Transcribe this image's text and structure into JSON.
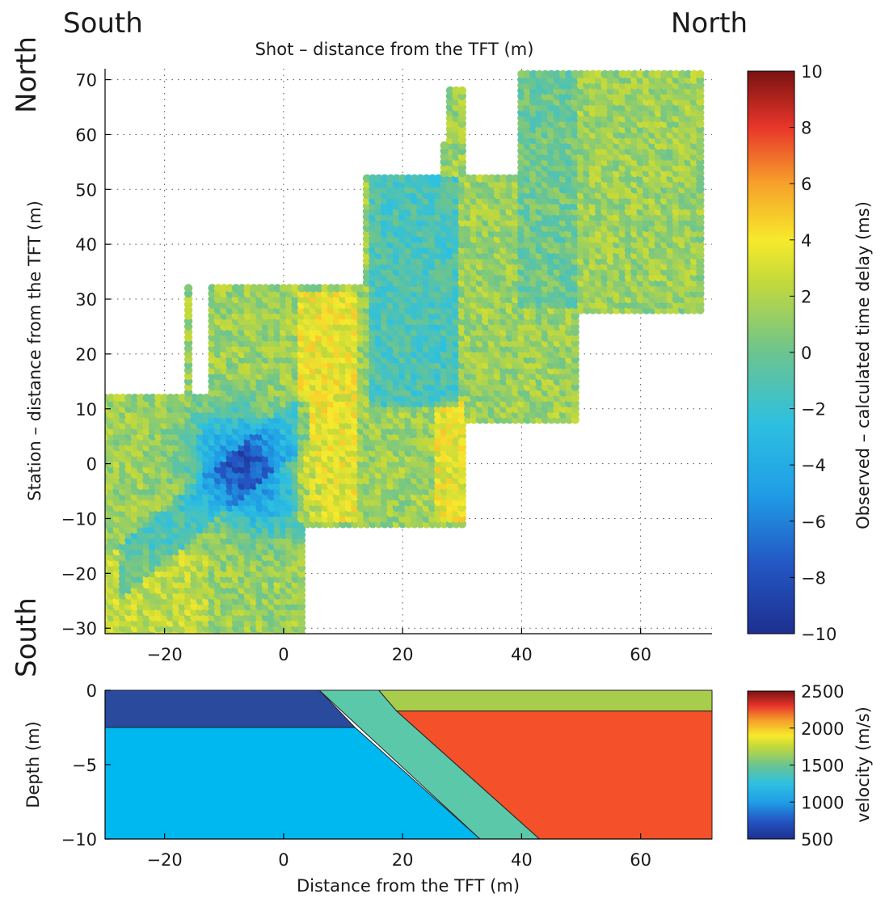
{
  "corner_labels": {
    "top_left": "South",
    "top_right": "North",
    "left_top": "North",
    "left_bottom": "South"
  },
  "chart_data": [
    {
      "type": "scatter",
      "subtype": "residual-map",
      "title": "",
      "xlabel": "Shot – distance from the TFT (m)",
      "ylabel": "Station – distance from the TFT (m)",
      "xlim": [
        -30,
        72
      ],
      "ylim": [
        -31,
        72
      ],
      "xticks": [
        -20,
        0,
        20,
        40,
        60
      ],
      "yticks": [
        -30,
        -20,
        -10,
        0,
        10,
        20,
        30,
        40,
        50,
        60,
        70
      ],
      "xtick_labels": [
        "−20",
        "0",
        "20",
        "40",
        "60"
      ],
      "ytick_labels": [
        "−30",
        "−20",
        "−10",
        "0",
        "10",
        "20",
        "30",
        "40",
        "50",
        "60",
        "70"
      ],
      "grid": "dotted",
      "shot_spacing_m": 1,
      "station_spacing_m": 1,
      "blocks": [
        {
          "x": [
            -30,
            3
          ],
          "y": [
            -31,
            12
          ]
        },
        {
          "x": [
            -12,
            14
          ],
          "y": [
            -11,
            32
          ]
        },
        {
          "x": [
            -16,
            -16
          ],
          "y": [
            12,
            32
          ]
        },
        {
          "x": [
            5,
            13
          ],
          "y": [
            -11,
            12
          ]
        },
        {
          "x": [
            14,
            30
          ],
          "y": [
            -11,
            12
          ]
        },
        {
          "x": [
            14,
            49
          ],
          "y": [
            8,
            52
          ]
        },
        {
          "x": [
            21,
            30
          ],
          "y": [
            -11,
            4
          ]
        },
        {
          "x": [
            28,
            30
          ],
          "y": [
            52,
            68
          ]
        },
        {
          "x": [
            27,
            27
          ],
          "y": [
            52,
            58
          ]
        },
        {
          "x": [
            40,
            70
          ],
          "y": [
            28,
            71
          ]
        },
        {
          "x": [
            70,
            70
          ],
          "y": [
            28,
            52
          ]
        }
      ],
      "colorbar": {
        "label": "Observed – calculated time delay (ms)",
        "min": -10,
        "max": 10,
        "ticks": [
          10,
          8,
          6,
          4,
          2,
          0,
          -2,
          -4,
          -6,
          -8,
          -10
        ],
        "tick_labels": [
          "10",
          "8",
          "6",
          "4",
          "2",
          "0",
          "−2",
          "−4",
          "−6",
          "−8",
          "−10"
        ],
        "colormap": "jet"
      }
    },
    {
      "type": "area",
      "subtype": "velocity-model",
      "title": "",
      "xlabel": "Distance from the TFT (m)",
      "ylabel": "Depth (m)",
      "xlim": [
        -30,
        72
      ],
      "ylim": [
        -10,
        0
      ],
      "xticks": [
        -20,
        0,
        20,
        40,
        60
      ],
      "yticks": [
        0,
        -5,
        -10
      ],
      "xtick_labels": [
        "−20",
        "0",
        "20",
        "40",
        "60"
      ],
      "ytick_labels": [
        "0",
        "−5",
        "−10"
      ],
      "regions": [
        {
          "velocity": 700,
          "color": "#2a4a9e",
          "polygon": [
            [
              -30,
              0
            ],
            [
              6,
              0
            ],
            [
              12,
              -2.5
            ],
            [
              -30,
              -2.5
            ]
          ]
        },
        {
          "velocity": 1100,
          "color": "#00b8f0",
          "polygon": [
            [
              -30,
              -2.5
            ],
            [
              12,
              -2.5
            ],
            [
              33,
              -10
            ],
            [
              -30,
              -10
            ]
          ]
        },
        {
          "velocity": 1350,
          "color": "#5cc8aa",
          "polygon": [
            [
              6,
              0
            ],
            [
              16,
              0
            ],
            [
              19,
              -1.4
            ],
            [
              43,
              -10
            ],
            [
              33,
              -10
            ]
          ]
        },
        {
          "velocity": 1700,
          "color": "#a8cc4c",
          "polygon": [
            [
              16,
              0
            ],
            [
              72,
              0
            ],
            [
              72,
              -1.4
            ],
            [
              19,
              -1.4
            ]
          ]
        },
        {
          "velocity": 2200,
          "color": "#f4502a",
          "polygon": [
            [
              19,
              -1.4
            ],
            [
              72,
              -1.4
            ],
            [
              72,
              -10
            ],
            [
              43,
              -10
            ]
          ]
        }
      ],
      "colorbar": {
        "label": "velocity (m/s)",
        "min": 500,
        "max": 2500,
        "ticks": [
          2500,
          2000,
          1500,
          1000,
          500
        ],
        "tick_labels": [
          "2500",
          "2000",
          "1500",
          "1000",
          "500"
        ],
        "colormap": "jet"
      }
    }
  ]
}
